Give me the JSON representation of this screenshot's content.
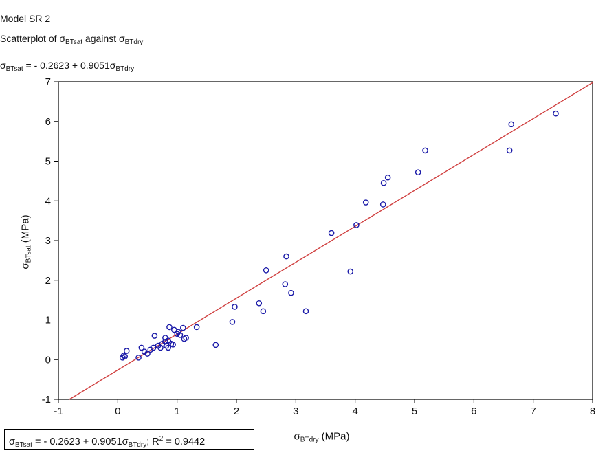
{
  "chart_data": {
    "type": "scatter",
    "title": "Model SR  2",
    "subtitle": "Scatterplot of σBTsat against σBTdry",
    "subtitle_parts": {
      "a": "Scatterplot of σ",
      "sub1": "BTsat",
      "b": " against σ",
      "sub2": "BTdry"
    },
    "equation_parts": {
      "a": "σ",
      "sub1": "BTsat",
      "b": " = - 0.2623 + 0.9051σ",
      "sub2": "BTdry"
    },
    "xlabel_parts": {
      "a": "σ",
      "sub": "BTdry",
      "b": " (MPa)"
    },
    "ylabel_parts": {
      "a": "σ",
      "sub": "BTsat",
      "b": " (MPa)"
    },
    "legend_parts": {
      "a": "σ",
      "sub1": "BTsat",
      "b": " = - 0.2623 + 0.9051σ",
      "sub2": "BTdry",
      "c": "; R",
      "sup": "2",
      "d": " = 0.9442"
    },
    "legend_placement": "bottom-left",
    "xlim": [
      -1,
      8
    ],
    "ylim": [
      -1,
      7
    ],
    "xticks": [
      "-1",
      "0",
      "1",
      "2",
      "3",
      "4",
      "5",
      "6",
      "7",
      "8"
    ],
    "yticks": [
      "-1",
      "0",
      "1",
      "2",
      "3",
      "4",
      "5",
      "6",
      "7"
    ],
    "grid": false,
    "regression": {
      "intercept": -0.2623,
      "slope": 0.9051,
      "r2": 0.9442,
      "color": "#d04040"
    },
    "marker_color": "#1a1aa8",
    "points": [
      {
        "x": 0.08,
        "y": 0.05
      },
      {
        "x": 0.12,
        "y": 0.08
      },
      {
        "x": 0.1,
        "y": 0.1
      },
      {
        "x": 0.15,
        "y": 0.22
      },
      {
        "x": 0.35,
        "y": 0.05
      },
      {
        "x": 0.4,
        "y": 0.3
      },
      {
        "x": 0.45,
        "y": 0.2
      },
      {
        "x": 0.5,
        "y": 0.15
      },
      {
        "x": 0.55,
        "y": 0.25
      },
      {
        "x": 0.6,
        "y": 0.3
      },
      {
        "x": 0.62,
        "y": 0.6
      },
      {
        "x": 0.68,
        "y": 0.35
      },
      {
        "x": 0.72,
        "y": 0.3
      },
      {
        "x": 0.75,
        "y": 0.4
      },
      {
        "x": 0.8,
        "y": 0.45
      },
      {
        "x": 0.8,
        "y": 0.55
      },
      {
        "x": 0.82,
        "y": 0.35
      },
      {
        "x": 0.85,
        "y": 0.3
      },
      {
        "x": 0.85,
        "y": 0.48
      },
      {
        "x": 0.87,
        "y": 0.82
      },
      {
        "x": 0.9,
        "y": 0.4
      },
      {
        "x": 0.93,
        "y": 0.38
      },
      {
        "x": 0.95,
        "y": 0.75
      },
      {
        "x": 1.0,
        "y": 0.65
      },
      {
        "x": 1.02,
        "y": 0.7
      },
      {
        "x": 1.05,
        "y": 0.62
      },
      {
        "x": 1.1,
        "y": 0.8
      },
      {
        "x": 1.12,
        "y": 0.52
      },
      {
        "x": 1.15,
        "y": 0.55
      },
      {
        "x": 1.33,
        "y": 0.82
      },
      {
        "x": 1.65,
        "y": 0.37
      },
      {
        "x": 1.93,
        "y": 0.95
      },
      {
        "x": 1.97,
        "y": 1.33
      },
      {
        "x": 2.38,
        "y": 1.42
      },
      {
        "x": 2.45,
        "y": 1.22
      },
      {
        "x": 2.5,
        "y": 2.25
      },
      {
        "x": 2.82,
        "y": 1.9
      },
      {
        "x": 2.84,
        "y": 2.6
      },
      {
        "x": 2.92,
        "y": 1.68
      },
      {
        "x": 3.17,
        "y": 1.22
      },
      {
        "x": 3.6,
        "y": 3.19
      },
      {
        "x": 3.92,
        "y": 2.22
      },
      {
        "x": 4.02,
        "y": 3.39
      },
      {
        "x": 4.18,
        "y": 3.96
      },
      {
        "x": 4.47,
        "y": 3.91
      },
      {
        "x": 4.48,
        "y": 4.45
      },
      {
        "x": 4.55,
        "y": 4.59
      },
      {
        "x": 5.06,
        "y": 4.72
      },
      {
        "x": 5.18,
        "y": 5.27
      },
      {
        "x": 6.6,
        "y": 5.27
      },
      {
        "x": 6.63,
        "y": 5.93
      },
      {
        "x": 7.38,
        "y": 6.2
      }
    ]
  }
}
